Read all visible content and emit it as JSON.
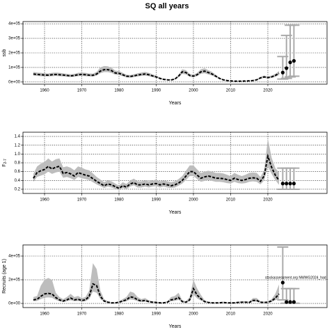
{
  "title": "SQ all years",
  "annotation": "stockassessment.org NWWG2024_had_",
  "chart_data": [
    {
      "type": "line",
      "ylabel": "ssb",
      "xlabel": "Years",
      "line_color": "#000000",
      "band_color": "#bdbdbd",
      "bar_color": "#aaaaaa",
      "grid": true,
      "xlim": [
        1954.2,
        2035.9
      ],
      "xticks": [
        1960,
        1970,
        1980,
        1990,
        2000,
        2010,
        2020
      ],
      "ylim": [
        -15000,
        415000
      ],
      "yticks": [
        {
          "value": 0,
          "label": "0e+00"
        },
        {
          "value": 100000,
          "label": "1e+05"
        },
        {
          "value": 200000,
          "label": "2e+05"
        },
        {
          "value": 300000,
          "label": "3e+05"
        },
        {
          "value": 400000,
          "label": "4e+05"
        }
      ],
      "x": [
        1957,
        1958,
        1959,
        1960,
        1961,
        1962,
        1963,
        1964,
        1965,
        1966,
        1967,
        1968,
        1969,
        1970,
        1971,
        1972,
        1973,
        1974,
        1975,
        1976,
        1977,
        1978,
        1979,
        1980,
        1981,
        1982,
        1983,
        1984,
        1985,
        1986,
        1987,
        1988,
        1989,
        1990,
        1991,
        1992,
        1993,
        1994,
        1995,
        1996,
        1997,
        1998,
        1999,
        2000,
        2001,
        2002,
        2003,
        2004,
        2005,
        2006,
        2007,
        2008,
        2009,
        2010,
        2011,
        2012,
        2013,
        2014,
        2015,
        2016,
        2017,
        2018,
        2019,
        2020,
        2021,
        2022,
        2023
      ],
      "values": [
        55000,
        52000,
        50000,
        48000,
        47000,
        50000,
        52000,
        50000,
        48000,
        45000,
        42000,
        45000,
        50000,
        52000,
        50000,
        47000,
        46000,
        55000,
        75000,
        85000,
        85000,
        78000,
        62000,
        60000,
        50000,
        40000,
        38000,
        42000,
        48000,
        52000,
        55000,
        50000,
        42000,
        35000,
        25000,
        18000,
        15000,
        14000,
        20000,
        40000,
        70000,
        65000,
        45000,
        40000,
        50000,
        70000,
        75000,
        65000,
        55000,
        40000,
        25000,
        15000,
        10000,
        8000,
        6000,
        6000,
        6000,
        7000,
        8000,
        10000,
        15000,
        28000,
        35000,
        30000,
        35000,
        45000,
        60000
      ],
      "lower": [
        44000,
        42000,
        40000,
        38000,
        38000,
        40000,
        42000,
        40000,
        38000,
        36000,
        34000,
        36000,
        40000,
        42000,
        40000,
        38000,
        37000,
        44000,
        60000,
        68000,
        68000,
        62000,
        50000,
        48000,
        40000,
        32000,
        30000,
        34000,
        38000,
        42000,
        44000,
        40000,
        34000,
        28000,
        20000,
        14000,
        12000,
        11000,
        16000,
        32000,
        56000,
        52000,
        36000,
        32000,
        40000,
        56000,
        60000,
        52000,
        44000,
        32000,
        20000,
        12000,
        8000,
        6000,
        5000,
        5000,
        5000,
        6000,
        6000,
        8000,
        12000,
        22000,
        28000,
        24000,
        28000,
        36000,
        48000
      ],
      "upper": [
        69000,
        65000,
        63000,
        60000,
        59000,
        63000,
        65000,
        63000,
        60000,
        56000,
        53000,
        56000,
        63000,
        65000,
        63000,
        59000,
        58000,
        69000,
        100000,
        110000,
        108000,
        98000,
        78000,
        75000,
        63000,
        50000,
        48000,
        53000,
        60000,
        65000,
        69000,
        63000,
        53000,
        44000,
        31000,
        23000,
        19000,
        18000,
        25000,
        50000,
        88000,
        81000,
        56000,
        50000,
        63000,
        88000,
        94000,
        81000,
        69000,
        50000,
        31000,
        19000,
        13000,
        10000,
        8000,
        8000,
        8000,
        9000,
        10000,
        13000,
        19000,
        35000,
        44000,
        38000,
        44000,
        56000,
        75000
      ],
      "projection": {
        "x": [
          2024,
          2025,
          2026,
          2027
        ],
        "values": [
          65000,
          95000,
          135000,
          145000
        ],
        "lower": [
          20000,
          25000,
          35000,
          40000
        ],
        "upper": [
          175000,
          320000,
          390000,
          390000
        ]
      }
    },
    {
      "type": "line",
      "ylabel": "F",
      "ylabel_sub": "2-7",
      "xlabel": "Years",
      "line_color": "#000000",
      "band_color": "#bdbdbd",
      "bar_color": "#aaaaaa",
      "grid": true,
      "xlim": [
        1954.2,
        2035.9
      ],
      "xticks": [
        1960,
        1970,
        1980,
        1990,
        2000,
        2010,
        2020
      ],
      "ylim": [
        0.105,
        1.495
      ],
      "yticks": [
        0.2,
        0.4,
        0.6,
        0.8,
        {
          "value": 1,
          "label": "1.0"
        },
        1.2,
        1.4
      ],
      "x": [
        1957,
        1958,
        1959,
        1960,
        1961,
        1962,
        1963,
        1964,
        1965,
        1966,
        1967,
        1968,
        1969,
        1970,
        1971,
        1972,
        1973,
        1974,
        1975,
        1976,
        1977,
        1978,
        1979,
        1980,
        1981,
        1982,
        1983,
        1984,
        1985,
        1986,
        1987,
        1988,
        1989,
        1990,
        1991,
        1992,
        1993,
        1994,
        1995,
        1996,
        1997,
        1998,
        1999,
        2000,
        2001,
        2002,
        2003,
        2004,
        2005,
        2006,
        2007,
        2008,
        2009,
        2010,
        2011,
        2012,
        2013,
        2014,
        2015,
        2016,
        2017,
        2018,
        2019,
        2020,
        2021,
        2022,
        2023
      ],
      "values": [
        0.45,
        0.58,
        0.62,
        0.65,
        0.72,
        0.66,
        0.7,
        0.72,
        0.56,
        0.58,
        0.55,
        0.5,
        0.58,
        0.55,
        0.52,
        0.5,
        0.44,
        0.38,
        0.33,
        0.28,
        0.32,
        0.3,
        0.26,
        0.22,
        0.28,
        0.25,
        0.32,
        0.35,
        0.3,
        0.3,
        0.32,
        0.3,
        0.32,
        0.33,
        0.3,
        0.32,
        0.3,
        0.28,
        0.3,
        0.34,
        0.4,
        0.5,
        0.6,
        0.6,
        0.52,
        0.45,
        0.48,
        0.5,
        0.48,
        0.45,
        0.45,
        0.44,
        0.42,
        0.4,
        0.45,
        0.42,
        0.4,
        0.42,
        0.45,
        0.46,
        0.45,
        0.38,
        0.5,
        0.95,
        0.7,
        0.52,
        0.4
      ],
      "lower": [
        0.37,
        0.48,
        0.51,
        0.54,
        0.6,
        0.55,
        0.58,
        0.6,
        0.46,
        0.48,
        0.45,
        0.41,
        0.48,
        0.45,
        0.43,
        0.41,
        0.36,
        0.31,
        0.27,
        0.23,
        0.26,
        0.24,
        0.21,
        0.18,
        0.23,
        0.2,
        0.26,
        0.29,
        0.24,
        0.24,
        0.26,
        0.24,
        0.26,
        0.27,
        0.24,
        0.26,
        0.24,
        0.23,
        0.24,
        0.28,
        0.33,
        0.41,
        0.5,
        0.5,
        0.43,
        0.37,
        0.39,
        0.41,
        0.39,
        0.37,
        0.37,
        0.36,
        0.34,
        0.33,
        0.37,
        0.34,
        0.33,
        0.34,
        0.37,
        0.38,
        0.37,
        0.31,
        0.4,
        0.72,
        0.55,
        0.41,
        0.3
      ],
      "upper": [
        0.55,
        0.72,
        0.78,
        0.82,
        0.9,
        0.83,
        0.88,
        0.9,
        0.7,
        0.72,
        0.69,
        0.63,
        0.72,
        0.69,
        0.65,
        0.63,
        0.56,
        0.48,
        0.42,
        0.36,
        0.4,
        0.38,
        0.33,
        0.28,
        0.36,
        0.32,
        0.4,
        0.44,
        0.38,
        0.38,
        0.4,
        0.38,
        0.4,
        0.42,
        0.38,
        0.4,
        0.38,
        0.36,
        0.38,
        0.43,
        0.5,
        0.62,
        0.74,
        0.74,
        0.65,
        0.57,
        0.6,
        0.62,
        0.6,
        0.57,
        0.57,
        0.56,
        0.53,
        0.5,
        0.57,
        0.53,
        0.5,
        0.53,
        0.57,
        0.58,
        0.57,
        0.48,
        0.63,
        1.35,
        0.92,
        0.68,
        0.58
      ],
      "projection": {
        "x": [
          2024,
          2025,
          2026,
          2027
        ],
        "values": [
          0.33,
          0.33,
          0.33,
          0.33
        ],
        "lower": [
          0.2,
          0.2,
          0.2,
          0.2
        ],
        "upper": [
          0.68,
          0.68,
          0.68,
          0.68
        ]
      }
    },
    {
      "type": "line",
      "ylabel": "Recruits (age 1)",
      "xlabel": "Years",
      "line_color": "#000000",
      "band_color": "#bdbdbd",
      "bar_color": "#aaaaaa",
      "grid": true,
      "xlim": [
        1954.2,
        2035.9
      ],
      "xticks": [
        1960,
        1970,
        1980,
        1990,
        2000,
        2010,
        2020
      ],
      "ylim": [
        -35000,
        494000
      ],
      "yticks": [
        {
          "value": 0,
          "label": "0e+00"
        },
        {
          "value": 200000,
          "label": "2e+05"
        },
        {
          "value": 400000,
          "label": "4e+05"
        }
      ],
      "x": [
        1957,
        1958,
        1959,
        1960,
        1961,
        1962,
        1963,
        1964,
        1965,
        1966,
        1967,
        1968,
        1969,
        1970,
        1971,
        1972,
        1973,
        1974,
        1975,
        1976,
        1977,
        1978,
        1979,
        1980,
        1981,
        1982,
        1983,
        1984,
        1985,
        1986,
        1987,
        1988,
        1989,
        1990,
        1991,
        1992,
        1993,
        1994,
        1995,
        1996,
        1997,
        1998,
        1999,
        2000,
        2001,
        2002,
        2003,
        2004,
        2005,
        2006,
        2007,
        2008,
        2009,
        2010,
        2011,
        2012,
        2013,
        2014,
        2015,
        2016,
        2017,
        2018,
        2019,
        2020,
        2021,
        2022,
        2023
      ],
      "values": [
        30000,
        35000,
        60000,
        80000,
        85000,
        80000,
        50000,
        30000,
        20000,
        30000,
        45000,
        30000,
        35000,
        25000,
        30000,
        60000,
        165000,
        150000,
        60000,
        20000,
        10000,
        5000,
        5000,
        10000,
        20000,
        30000,
        55000,
        50000,
        30000,
        20000,
        25000,
        15000,
        10000,
        8000,
        5000,
        5000,
        10000,
        30000,
        35000,
        50000,
        15000,
        10000,
        30000,
        125000,
        70000,
        40000,
        15000,
        8000,
        5000,
        5000,
        5000,
        8000,
        5000,
        5000,
        5000,
        8000,
        10000,
        10000,
        8000,
        25000,
        25000,
        10000,
        8000,
        10000,
        20000,
        45000,
        80000
      ],
      "lower": [
        18000,
        21000,
        36000,
        48000,
        51000,
        48000,
        30000,
        18000,
        12000,
        18000,
        27000,
        18000,
        21000,
        15000,
        18000,
        36000,
        100000,
        90000,
        36000,
        12000,
        6000,
        3000,
        3000,
        6000,
        12000,
        18000,
        33000,
        30000,
        18000,
        12000,
        15000,
        9000,
        6000,
        5000,
        3000,
        3000,
        6000,
        18000,
        21000,
        30000,
        9000,
        6000,
        18000,
        75000,
        42000,
        24000,
        9000,
        5000,
        3000,
        3000,
        3000,
        5000,
        3000,
        3000,
        3000,
        5000,
        6000,
        6000,
        5000,
        15000,
        15000,
        6000,
        5000,
        6000,
        12000,
        27000,
        40000
      ],
      "upper": [
        54000,
        63000,
        150000,
        200000,
        215000,
        200000,
        90000,
        54000,
        36000,
        54000,
        81000,
        54000,
        63000,
        45000,
        54000,
        108000,
        340000,
        290000,
        108000,
        36000,
        18000,
        9000,
        9000,
        18000,
        36000,
        54000,
        100000,
        90000,
        54000,
        36000,
        45000,
        27000,
        18000,
        14000,
        9000,
        9000,
        18000,
        54000,
        63000,
        90000,
        27000,
        18000,
        54000,
        200000,
        126000,
        72000,
        27000,
        14000,
        9000,
        9000,
        9000,
        14000,
        9000,
        9000,
        9000,
        14000,
        18000,
        18000,
        14000,
        45000,
        45000,
        18000,
        14000,
        18000,
        36000,
        81000,
        160000
      ],
      "projection": {
        "x": [
          2024,
          2025,
          2026,
          2027
        ],
        "values": [
          176000,
          12000,
          12000,
          12000
        ],
        "lower": [
          30000,
          2000,
          2000,
          2000
        ],
        "upper": [
          476000,
          125000,
          125000,
          125000
        ]
      }
    }
  ]
}
